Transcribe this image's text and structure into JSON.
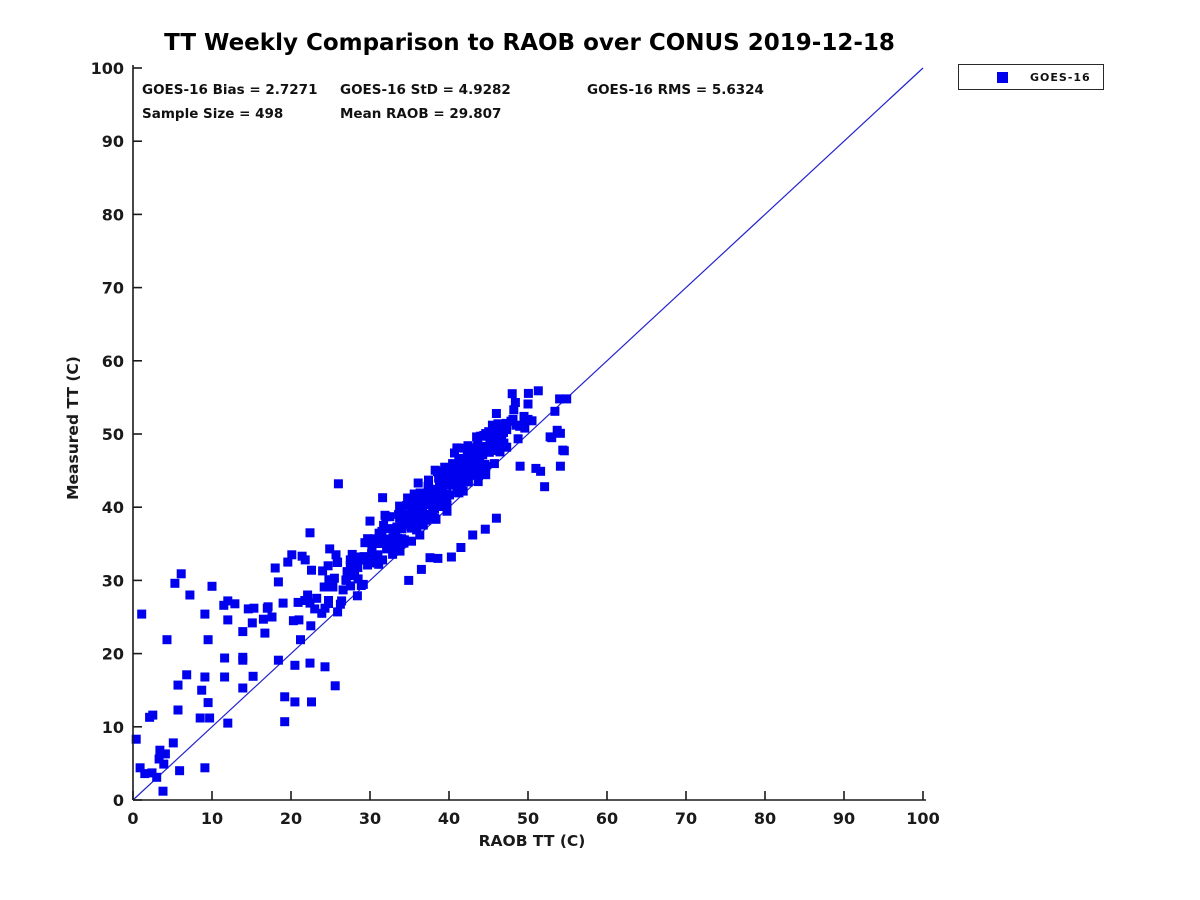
{
  "chart_data": {
    "type": "scatter",
    "title": "TT Weekly Comparison to RAOB over CONUS 2019-12-18",
    "xlabel": "RAOB TT (C)",
    "ylabel": "Measured TT (C)",
    "xlim": [
      0,
      100
    ],
    "ylim": [
      0,
      100
    ],
    "xticks": [
      0,
      10,
      20,
      30,
      40,
      50,
      60,
      70,
      80,
      90,
      100
    ],
    "yticks": [
      0,
      10,
      20,
      30,
      40,
      50,
      60,
      70,
      80,
      90,
      100
    ],
    "grid": false,
    "annotations": {
      "bias": "GOES-16 Bias = 2.7271",
      "std": "GOES-16 StD = 4.9282",
      "rms": "GOES-16 RMS = 5.6324",
      "sample_size": "Sample Size = 498",
      "mean_raob": "Mean RAOB = 29.807"
    },
    "stats_values": {
      "bias": 2.7271,
      "std": 4.9282,
      "rms": 5.6324,
      "sample_size": 498,
      "mean_raob": 29.807
    },
    "identity_line": {
      "from": [
        0,
        0
      ],
      "to": [
        100,
        100
      ],
      "color": "#2323cf"
    },
    "legend": {
      "position": "top-right-outside",
      "entries": [
        {
          "label": "GOES-16",
          "marker": "square",
          "color": "#0000ee"
        }
      ]
    },
    "series": [
      {
        "name": "GOES-16",
        "marker": "square",
        "marker_size_px": 9,
        "color": "#0000ee",
        "points": [
          [
            0.4,
            8.3
          ],
          [
            1.1,
            25.4
          ],
          [
            1.5,
            3.6
          ],
          [
            2.5,
            11.6
          ],
          [
            3.0,
            3.1
          ],
          [
            3.3,
            5.6
          ],
          [
            3.9,
            4.9
          ],
          [
            3.8,
            1.2
          ],
          [
            5.1,
            7.8
          ],
          [
            3.4,
            6.8
          ],
          [
            4.1,
            6.3
          ],
          [
            0.9,
            4.4
          ],
          [
            2.4,
            3.7
          ],
          [
            5.9,
            4.0
          ],
          [
            9.1,
            4.4
          ],
          [
            5.3,
            29.6
          ],
          [
            6.1,
            30.9
          ],
          [
            7.2,
            28.0
          ],
          [
            9.1,
            25.4
          ],
          [
            10.0,
            29.2
          ],
          [
            11.5,
            26.6
          ],
          [
            12.0,
            27.2
          ],
          [
            12.9,
            26.8
          ],
          [
            14.6,
            26.1
          ],
          [
            15.3,
            26.2
          ],
          [
            17.0,
            26.2
          ],
          [
            17.6,
            25.0
          ],
          [
            16.5,
            24.7
          ],
          [
            15.1,
            24.2
          ],
          [
            4.3,
            21.9
          ],
          [
            9.5,
            21.9
          ],
          [
            13.9,
            19.5
          ],
          [
            11.6,
            16.8
          ],
          [
            6.8,
            17.1
          ],
          [
            5.7,
            15.7
          ],
          [
            9.1,
            16.8
          ],
          [
            8.7,
            15.0
          ],
          [
            9.5,
            13.3
          ],
          [
            5.7,
            12.3
          ],
          [
            2.1,
            11.3
          ],
          [
            8.5,
            11.2
          ],
          [
            9.7,
            11.2
          ],
          [
            12.0,
            24.6
          ],
          [
            13.9,
            23.0
          ],
          [
            16.7,
            22.8
          ],
          [
            11.6,
            19.4
          ],
          [
            13.9,
            19.1
          ],
          [
            18.4,
            19.1
          ],
          [
            20.5,
            18.4
          ],
          [
            22.4,
            18.7
          ],
          [
            24.3,
            18.2
          ],
          [
            19.2,
            14.1
          ],
          [
            20.5,
            13.4
          ],
          [
            22.6,
            13.4
          ],
          [
            15.2,
            16.9
          ],
          [
            13.9,
            15.3
          ],
          [
            12.0,
            10.5
          ],
          [
            19.2,
            10.7
          ],
          [
            25.6,
            15.6
          ],
          [
            18.0,
            31.7
          ],
          [
            19.6,
            32.5
          ],
          [
            21.4,
            33.3
          ],
          [
            22.6,
            31.4
          ],
          [
            24.7,
            32.0
          ],
          [
            25.9,
            32.5
          ],
          [
            27.7,
            31.4
          ],
          [
            28.5,
            33.2
          ],
          [
            29.7,
            32.1
          ],
          [
            31.0,
            33.5
          ],
          [
            18.4,
            29.8
          ],
          [
            19.0,
            26.9
          ],
          [
            17.1,
            26.4
          ],
          [
            20.9,
            27.0
          ],
          [
            22.4,
            26.9
          ],
          [
            24.3,
            26.2
          ],
          [
            25.9,
            25.7
          ],
          [
            20.1,
            33.5
          ],
          [
            21.8,
            32.8
          ],
          [
            24.9,
            34.3
          ],
          [
            26.0,
            43.2
          ],
          [
            22.4,
            36.5
          ],
          [
            31.6,
            41.3
          ],
          [
            51.3,
            55.9
          ],
          [
            54.0,
            54.8
          ],
          [
            54.9,
            54.8
          ],
          [
            53.4,
            53.1
          ],
          [
            48.1,
            52.0
          ],
          [
            50.0,
            52.0
          ],
          [
            53.7,
            50.5
          ],
          [
            53.0,
            49.5
          ],
          [
            54.6,
            47.7
          ],
          [
            51.6,
            44.9
          ],
          [
            46.6,
            49.3
          ],
          [
            49.0,
            45.6
          ],
          [
            51.0,
            45.3
          ],
          [
            54.1,
            45.6
          ],
          [
            52.1,
            42.8
          ],
          [
            50.5,
            51.8
          ],
          [
            48.5,
            51.2
          ],
          [
            49.6,
            50.8
          ],
          [
            52.8,
            49.6
          ],
          [
            54.1,
            50.1
          ],
          [
            54.4,
            47.8
          ],
          [
            38.6,
            33.0
          ],
          [
            40.3,
            33.2
          ],
          [
            41.5,
            34.5
          ],
          [
            43.0,
            36.2
          ],
          [
            44.6,
            37.0
          ],
          [
            46.0,
            38.5
          ],
          [
            36.5,
            31.5
          ],
          [
            34.9,
            30.0
          ],
          [
            37.6,
            33.1
          ]
        ],
        "cluster_passes": [
          {
            "x_start": 20.3,
            "x_step": 0.9,
            "bias": 2.7,
            "residuals": [
              1.5,
              -2.0,
              3.2,
              0.4,
              -1.1,
              2.6,
              5.1,
              -0.6,
              1.9,
              -3.2,
              0.8,
              2.2,
              -1.6,
              4.0,
              0.2,
              -2.5,
              1.2,
              3.5,
              -0.9,
              2.9,
              0.5,
              -1.8,
              1.7,
              4.4,
              -0.3,
              2.0,
              -2.9,
              1.0,
              3.0,
              -1.3,
              0.6,
              2.4,
              -0.7,
              1.4
            ]
          },
          {
            "x_start": 21.0,
            "x_step": 0.75,
            "bias": 2.7,
            "residuals": [
              0.9,
              2.8,
              -1.4,
              1.6,
              4.6,
              -0.2,
              2.1,
              -2.2,
              0.3,
              3.1,
              -1.0,
              1.3,
              5.4,
              -0.5,
              2.5,
              0.0,
              -1.7,
              3.7,
              1.1,
              -2.6,
              0.7,
              2.3,
              -1.2,
              4.1,
              0.1,
              -3.0,
              1.8,
              2.7,
              -0.4,
              1.0,
              3.4,
              -1.5,
              0.5,
              2.0,
              -0.8,
              1.5,
              4.8,
              -2.1,
              0.2
            ]
          },
          {
            "x_start": 24.2,
            "x_step": 0.55,
            "bias": 2.7,
            "residuals": [
              2.2,
              -0.6,
              1.1,
              3.9,
              -1.9,
              0.4,
              2.6,
              -0.1,
              1.5,
              -2.4,
              3.3,
              0.8,
              -1.1,
              2.0,
              4.3,
              -0.7,
              1.3,
              -1.6,
              0.6,
              2.9,
              -0.2,
              1.8,
              -2.8,
              0.9,
              3.6,
              -1.3,
              0.3,
              2.4,
              -0.5,
              1.6,
              4.0,
              -2.0,
              1.0,
              2.1,
              -0.9,
              0.5,
              3.0,
              -1.4,
              1.9,
              -0.3,
              2.5,
              0.7,
              -1.8,
              1.2,
              3.2,
              -0.6,
              0.1,
              2.8
            ]
          },
          {
            "x_start": 27.1,
            "x_step": 0.45,
            "bias": 2.7,
            "residuals": [
              1.4,
              -1.0,
              2.3,
              0.6,
              -2.3,
              3.1,
              0.2,
              1.7,
              -0.8,
              2.6,
              -1.5,
              0.9,
              3.5,
              -0.4,
              1.2,
              2.0,
              -1.9,
              0.5,
              2.9,
              -0.2,
              4.5,
              1.0,
              -1.2,
              2.2,
              0.4,
              -2.7,
              1.6,
              3.0,
              -0.6,
              0.8,
              2.5,
              -1.4,
              1.1,
              0.0,
              3.3,
              -0.9,
              1.8,
              -2.1,
              0.7,
              2.7,
              -0.3,
              1.3,
              4.1,
              -1.6,
              0.6
            ]
          },
          {
            "x_start": 30.2,
            "x_step": 0.38,
            "bias": 2.7,
            "residuals": [
              0.8,
              2.4,
              -1.3,
              1.0,
              3.1,
              -0.5,
              1.9,
              -2.0,
              0.3,
              2.7,
              -1.0,
              1.4,
              3.8,
              -0.1,
              0.9,
              -1.7,
              2.2,
              0.5,
              -0.9,
              3.0,
              1.2,
              -2.4,
              0.6,
              2.0,
              -0.4,
              1.6,
              -1.1,
              2.8,
              0.1,
              -1.9,
              1.1,
              3.4,
              -0.7,
              0.7,
              2.3,
              -1.5,
              1.5,
              0.2,
              -2.9,
              2.6,
              0.4
            ]
          },
          {
            "x_start": 33.15,
            "x_step": 0.3,
            "bias": 2.7,
            "residuals": [
              1.0,
              -0.4,
              2.1,
              0.3,
              -1.5,
              1.7,
              3.2,
              -0.8,
              0.6,
              2.4,
              -0.2,
              1.2,
              -1.9,
              0.9,
              2.8,
              0.0,
              -1.2,
              1.5,
              3.6,
              -0.6,
              0.4,
              2.2,
              -2.2,
              0.8,
              1.8,
              -0.3,
              1.1,
              2.6,
              -1.0,
              0.2,
              1.4,
              -1.7,
              2.0,
              0.7,
              -0.5,
              3.0,
              1.3,
              -1.3,
              0.5,
              2.5,
              -0.1,
              1.6,
              -2.5,
              0.9,
              2.1,
              0.3,
              -0.9
            ]
          },
          {
            "x_start": 35.3,
            "x_step": 0.26,
            "bias": 2.7,
            "residuals": [
              0.5,
              1.9,
              -0.7,
              1.2,
              2.9,
              -0.3,
              0.8,
              -1.6,
              2.3,
              0.1,
              1.5,
              -1.1,
              0.6,
              2.6,
              -0.5,
              1.0,
              3.3,
              -1.4,
              0.4,
              1.8,
              -0.2,
              2.1,
              -0.9,
              0.7,
              1.3,
              -2.3,
              0.9,
              2.4,
              0.2,
              -1.2,
              1.6,
              0.0,
              2.0,
              -0.6,
              1.1,
              2.7,
              -1.8,
              0.3,
              1.4,
              -0.4,
              2.2
            ]
          }
        ]
      }
    ],
    "colors": {
      "marker": "#0000ee",
      "identity_line": "#2323cf",
      "axis": "#1a1a1a",
      "text": "#111111",
      "background": "#ffffff"
    }
  }
}
